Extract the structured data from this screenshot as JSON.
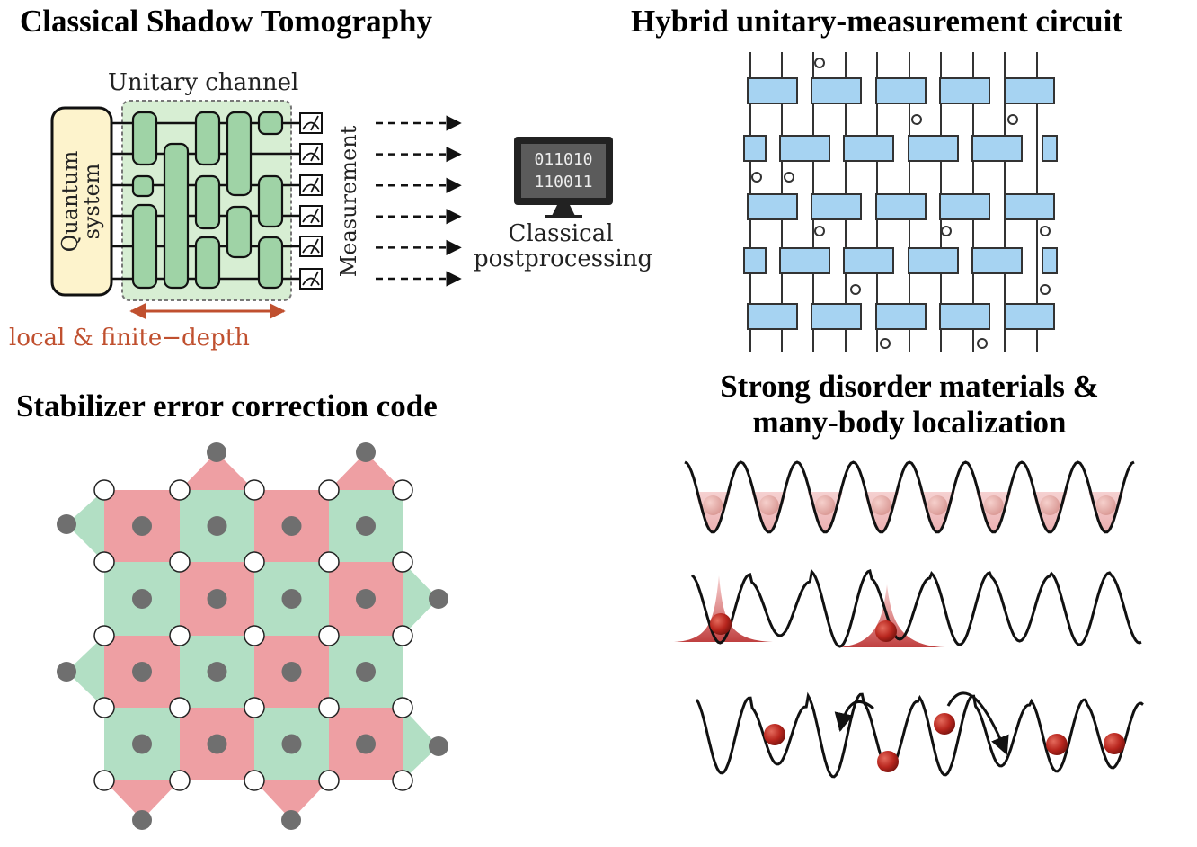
{
  "panels": {
    "shadow": {
      "title": "Classical Shadow Tomography",
      "unitary_label": "Unitary channel",
      "system_line1": "Quantum",
      "system_line2": "system",
      "measurement_label": "Measurement",
      "computer_line1": "011010",
      "computer_line2": "110011",
      "post_line1": "Classical",
      "post_line2": "postprocessing",
      "depth_label": "local & finite−depth"
    },
    "hybrid": {
      "title": "Hybrid unitary-measurement circuit"
    },
    "stabilizer": {
      "title": "Stabilizer error correction code"
    },
    "mbl": {
      "title_line1": "Strong disorder materials &",
      "title_line2": "many-body localization"
    }
  },
  "colors": {
    "system_fill": "#fdf3cc",
    "gate_green": "#9fd3a6",
    "channel_bg": "#d7eed3",
    "accent_red": "#c0502f",
    "gate_blue": "#a6d3f2",
    "code_red": "#ee9fa3",
    "code_green": "#b2dfc4",
    "qubit_gray": "#6f6f6f",
    "particle_red": "#b8261e"
  }
}
